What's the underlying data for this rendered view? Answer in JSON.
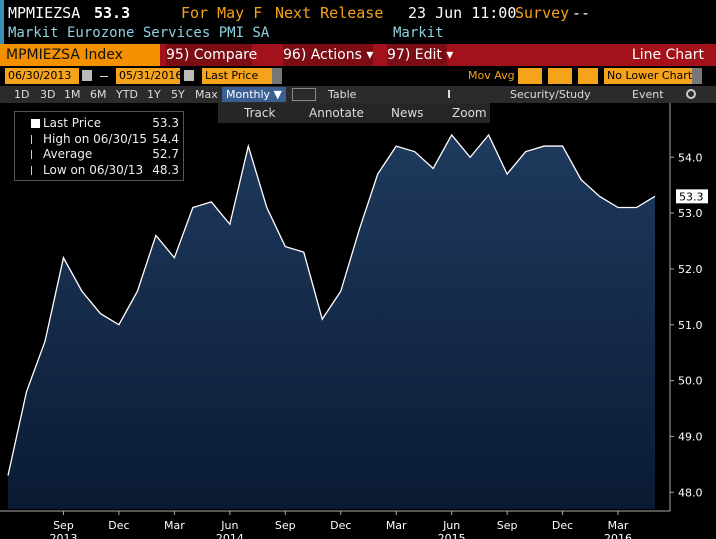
{
  "header": {
    "ticker": "MPMIEZSA",
    "last": 53.3,
    "period": "For May F",
    "next_release_label": "Next Release",
    "next_release": "23 Jun 11:00",
    "survey_label": "Survey",
    "survey": "--",
    "description": "Markit Eurozone Services PMI SA",
    "source": "Markit"
  },
  "toolbar": {
    "security": "MPMIEZSA Index",
    "compare": "95) Compare",
    "actions": "96) Actions ▾",
    "edit": "97) Edit ▾",
    "chart_type": "Line Chart"
  },
  "settings": {
    "start_date": "06/30/2013",
    "end_date": "05/31/2016",
    "field": "Last Price",
    "mov_avg": "Mov Avg",
    "lower_chart": "No Lower Chart"
  },
  "periods": [
    "1D",
    "3D",
    "1M",
    "6M",
    "YTD",
    "1Y",
    "5Y",
    "Max"
  ],
  "frequency": "Monthly ▼",
  "table": "Table",
  "security_study": "Security/Study",
  "event": "Event",
  "tools": [
    "Track",
    "Annotate",
    "News",
    "Zoom"
  ],
  "chart_data": {
    "type": "area",
    "color": "#ffffff",
    "fill_top": "#1f3a5e",
    "fill_bottom": "#0a1a33",
    "categories": [
      null,
      null,
      null,
      "Sep",
      null,
      null,
      "Dec",
      null,
      null,
      "Mar",
      null,
      null,
      "Jun",
      null,
      null,
      "Sep",
      null,
      null,
      "Dec",
      null,
      null,
      "Mar",
      null,
      null,
      "Jun",
      null,
      null,
      "Sep",
      null,
      null,
      "Dec",
      null,
      null,
      "Mar",
      null,
      null
    ],
    "year_labels": [
      null,
      null,
      null,
      "2013",
      null,
      null,
      null,
      null,
      null,
      null,
      null,
      null,
      "2014",
      null,
      null,
      null,
      null,
      null,
      null,
      null,
      null,
      null,
      null,
      null,
      "2015",
      null,
      null,
      null,
      null,
      null,
      null,
      null,
      null,
      "2016",
      null,
      null
    ],
    "values": [
      48.3,
      49.8,
      50.7,
      52.2,
      51.6,
      51.2,
      51.0,
      51.6,
      52.6,
      52.2,
      53.1,
      53.2,
      52.8,
      54.2,
      53.1,
      52.4,
      52.3,
      51.1,
      51.6,
      52.7,
      53.7,
      54.2,
      54.1,
      53.8,
      54.4,
      54.0,
      54.4,
      53.7,
      54.1,
      54.2,
      54.2,
      53.6,
      53.3,
      53.1,
      53.1,
      53.3
    ],
    "ylim": [
      47.7,
      54.9
    ],
    "yticks": [
      {
        "value": 48,
        "label": "48.0"
      },
      {
        "value": 49,
        "label": "49.0"
      },
      {
        "value": 50,
        "label": "50.0"
      },
      {
        "value": 51,
        "label": "51.0"
      },
      {
        "value": 52,
        "label": "52.0"
      },
      {
        "value": 53,
        "label": "53.0"
      },
      {
        "value": 54,
        "label": "54.0"
      }
    ],
    "legend": [
      {
        "label": "Last Price",
        "value": 53.3
      },
      {
        "label": "High on 06/30/15",
        "value": 54.4
      },
      {
        "label": "Average",
        "value": 52.7
      },
      {
        "label": "Low on 06/30/13",
        "value": 48.3
      }
    ]
  }
}
